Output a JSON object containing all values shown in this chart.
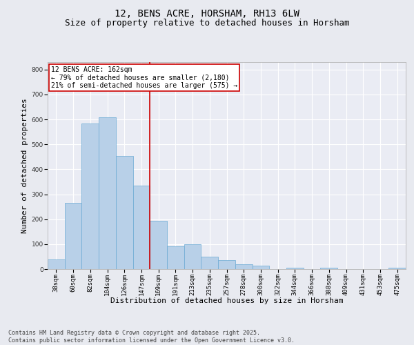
{
  "title1": "12, BENS ACRE, HORSHAM, RH13 6LW",
  "title2": "Size of property relative to detached houses in Horsham",
  "xlabel": "Distribution of detached houses by size in Horsham",
  "ylabel": "Number of detached properties",
  "categories": [
    "38sqm",
    "60sqm",
    "82sqm",
    "104sqm",
    "126sqm",
    "147sqm",
    "169sqm",
    "191sqm",
    "213sqm",
    "235sqm",
    "257sqm",
    "278sqm",
    "300sqm",
    "322sqm",
    "344sqm",
    "366sqm",
    "388sqm",
    "409sqm",
    "431sqm",
    "453sqm",
    "475sqm"
  ],
  "values": [
    40,
    265,
    585,
    610,
    455,
    335,
    195,
    90,
    100,
    50,
    35,
    18,
    13,
    0,
    5,
    0,
    5,
    0,
    0,
    0,
    5
  ],
  "bar_color": "#b8d0e8",
  "bar_edge_color": "#6aaad4",
  "background_color": "#e8eaf0",
  "plot_bg_color": "#eaecf4",
  "grid_color": "#ffffff",
  "vline_color": "#cc0000",
  "annotation_text": "12 BENS ACRE: 162sqm\n← 79% of detached houses are smaller (2,180)\n21% of semi-detached houses are larger (575) →",
  "annotation_box_color": "#ffffff",
  "annotation_box_edge_color": "#cc0000",
  "ylim": [
    0,
    830
  ],
  "yticks": [
    0,
    100,
    200,
    300,
    400,
    500,
    600,
    700,
    800
  ],
  "footer_text": "Contains HM Land Registry data © Crown copyright and database right 2025.\nContains public sector information licensed under the Open Government Licence v3.0.",
  "title_fontsize": 10,
  "subtitle_fontsize": 9,
  "tick_fontsize": 6.5,
  "label_fontsize": 8,
  "annotation_fontsize": 7,
  "footer_fontsize": 6
}
